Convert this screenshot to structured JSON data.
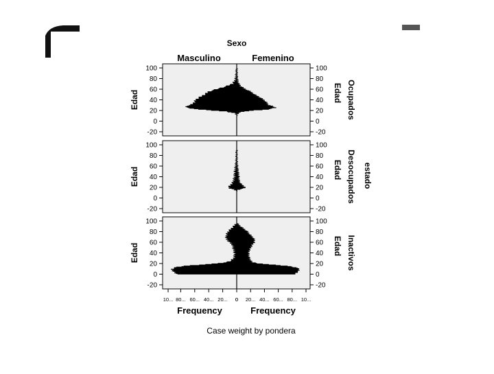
{
  "chart_data": {
    "type": "bar",
    "subtype": "population-pyramid",
    "title": "Sexo",
    "columns": [
      "Masculino",
      "Femenino"
    ],
    "row_variable": "estado",
    "rows": [
      "Ocupados",
      "Desocupados",
      "Inactivos"
    ],
    "y_axis_label": "Edad",
    "x_axis_label": "Frequency",
    "footnote": "Case weight by pondera",
    "y_ticks": [
      100,
      80,
      60,
      40,
      20,
      0,
      -20
    ],
    "ylim": [
      -20,
      100
    ],
    "x_ticks_left": [
      "10...",
      "80...",
      "60...",
      "40...",
      "20...",
      "0"
    ],
    "x_ticks_right": [
      "0",
      "20...",
      "40...",
      "60...",
      "80...",
      "10..."
    ],
    "xlim": [
      0,
      100
    ],
    "x_units": "thousands (approx.)",
    "bar_color": "#000000",
    "panel_background": "#efefef",
    "panels": [
      {
        "row": "Ocupados",
        "age": [
          12,
          15,
          18,
          20,
          22,
          25,
          28,
          30,
          35,
          40,
          45,
          50,
          55,
          60,
          65,
          70,
          75,
          80,
          85,
          90,
          95,
          98
        ],
        "masculino": [
          0.5,
          3,
          15,
          35,
          55,
          70,
          72,
          65,
          60,
          58,
          52,
          45,
          40,
          28,
          15,
          6,
          3,
          1.5,
          1,
          0.5,
          0.3,
          0.2
        ],
        "femenino": [
          0.5,
          2,
          10,
          25,
          45,
          55,
          50,
          45,
          42,
          38,
          32,
          25,
          20,
          12,
          6,
          3,
          1.5,
          1,
          0.5,
          0.3,
          0.2,
          0.1
        ]
      },
      {
        "row": "Desocupados",
        "age": [
          14,
          16,
          18,
          20,
          22,
          25,
          28,
          30,
          35,
          40,
          45,
          50,
          55,
          60,
          65,
          70,
          75,
          80,
          85,
          90
        ],
        "masculino": [
          0.5,
          4,
          10,
          12,
          10,
          8,
          6,
          5,
          4,
          3,
          3,
          2.5,
          2,
          1.5,
          1,
          0.5,
          0.3,
          0.2,
          0.1,
          0.1
        ],
        "femenino": [
          0.5,
          4,
          10,
          12,
          10,
          7,
          5,
          4,
          3,
          3,
          2.5,
          2,
          1.5,
          1,
          0.5,
          0.3,
          0.2,
          0.1,
          0.1,
          0.1
        ]
      },
      {
        "row": "Inactivos",
        "age": [
          0,
          3,
          6,
          9,
          12,
          15,
          18,
          20,
          22,
          25,
          30,
          35,
          40,
          45,
          50,
          55,
          60,
          65,
          70,
          75,
          80,
          85,
          90,
          95
        ],
        "masculino": [
          85,
          88,
          90,
          92,
          88,
          75,
          45,
          25,
          15,
          8,
          4,
          3,
          3,
          4,
          5,
          6,
          10,
          14,
          15,
          14,
          12,
          8,
          4,
          1
        ],
        "femenino": [
          82,
          85,
          88,
          88,
          85,
          72,
          45,
          30,
          22,
          20,
          18,
          17,
          17,
          18,
          20,
          22,
          25,
          25,
          22,
          18,
          15,
          10,
          5,
          1
        ]
      }
    ]
  }
}
